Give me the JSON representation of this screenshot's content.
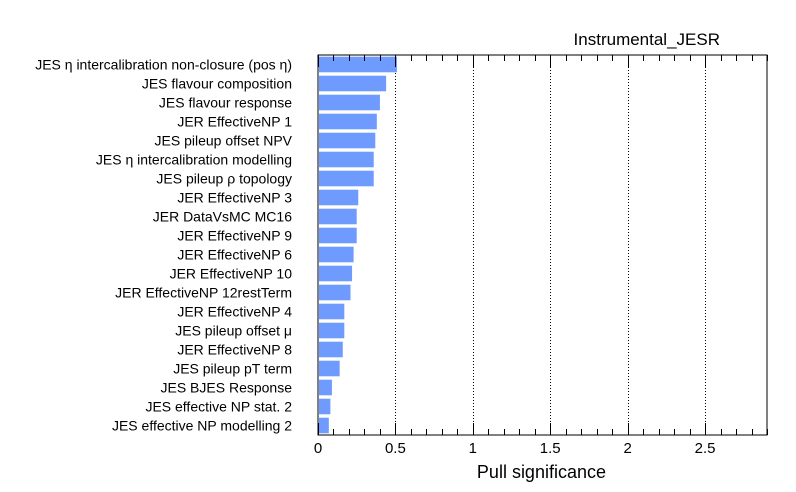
{
  "chart_data": {
    "type": "bar",
    "orientation": "horizontal",
    "title": "Instrumental_JESR",
    "xlabel": "Pull significance",
    "ylabel": "",
    "xlim": [
      0,
      2.9
    ],
    "xticks": [
      0,
      0.5,
      1,
      1.5,
      2,
      2.5
    ],
    "xtick_labels": [
      "0",
      "0.5",
      "1",
      "1.5",
      "2",
      "2.5"
    ],
    "grid": "vertical dotted lines at major x ticks",
    "bar_color": "#6f9bff",
    "categories": [
      "JES η intercalibration non-closure (pos    η)",
      "JES flavour composition",
      "JES flavour response",
      "JER EffectiveNP 1",
      "JES pileup offset NPV",
      "JES η intercalibration modelling",
      "JES pileup   ρ topology",
      "JER EffectiveNP 3",
      "JER DataVsMC MC16",
      "JER EffectiveNP 9",
      "JER EffectiveNP 6",
      "JER EffectiveNP 10",
      "JER EffectiveNP 12restTerm",
      "JER EffectiveNP 4",
      "JES pileup offset   μ",
      "JER EffectiveNP 8",
      "JES pileup pT term",
      "JES BJES Response",
      "JES effective NP stat. 2",
      "JES effective NP modelling 2"
    ],
    "values": [
      0.51,
      0.44,
      0.4,
      0.38,
      0.37,
      0.36,
      0.36,
      0.26,
      0.25,
      0.25,
      0.23,
      0.22,
      0.21,
      0.17,
      0.17,
      0.16,
      0.14,
      0.09,
      0.08,
      0.07
    ]
  }
}
